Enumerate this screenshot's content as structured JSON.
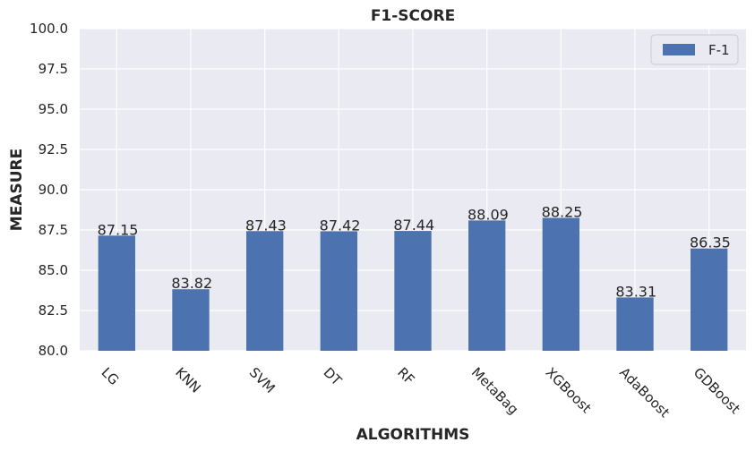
{
  "chart_data": {
    "type": "bar",
    "title": "F1-SCORE",
    "xlabel": "ALGORITHMS",
    "ylabel": "MEASURE",
    "categories": [
      "LG",
      "KNN",
      "SVM",
      "DT",
      "RF",
      "MetaBag",
      "XGBoost",
      "AdaBoost",
      "GDBoost"
    ],
    "series": [
      {
        "name": "F-1",
        "values": [
          87.15,
          83.82,
          87.43,
          87.42,
          87.44,
          88.09,
          88.25,
          83.31,
          86.35
        ],
        "color": "#4c72b0"
      }
    ],
    "data_labels": [
      "87.15",
      "83.82",
      "87.43",
      "87.42",
      "87.44",
      "88.09",
      "88.25",
      "83.31",
      "86.35"
    ],
    "ylim": [
      80.0,
      100.0
    ],
    "yticks": [
      "80.0",
      "82.5",
      "85.0",
      "87.5",
      "90.0",
      "92.5",
      "95.0",
      "97.5",
      "100.0"
    ],
    "grid": true,
    "legend_position": "top-right",
    "background_color": "#eaeaf2",
    "grid_color": "#ffffff"
  }
}
